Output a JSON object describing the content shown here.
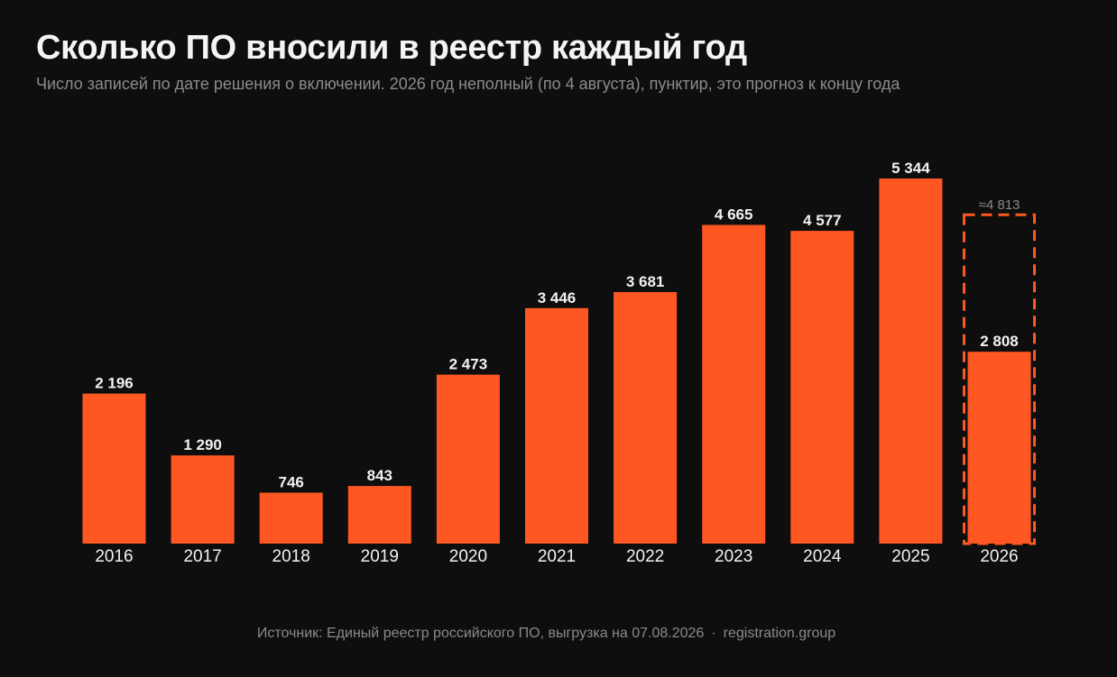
{
  "header": {
    "title": "Сколько ПО вносили в реестр каждый год",
    "subtitle": "Число записей по дате решения о включении. 2026 год неполный (по 4 августа), пунктир, это прогноз к концу года"
  },
  "footer": {
    "source": "Источник: Единый реестр российского ПО, выгрузка на 07.08.2026",
    "separator": "·",
    "site": "registration.group"
  },
  "colors": {
    "background": "#0e0e0e",
    "bar": "#ff5722",
    "forecast_outline": "#ff5722"
  },
  "chart_data": {
    "type": "bar",
    "categories": [
      "2016",
      "2017",
      "2018",
      "2019",
      "2020",
      "2021",
      "2022",
      "2023",
      "2024",
      "2025",
      "2026"
    ],
    "values": [
      2196,
      1290,
      746,
      843,
      2473,
      3446,
      3681,
      4665,
      4577,
      5344,
      2808
    ],
    "value_labels": [
      "2 196",
      "1 290",
      "746",
      "843",
      "2 473",
      "3 446",
      "3 681",
      "4 665",
      "4 577",
      "5 344",
      "2 808"
    ],
    "forecast": {
      "category": "2026",
      "value": 4813,
      "label": "≈4 813",
      "style": "dashed outline"
    },
    "ylim": [
      0,
      5344
    ],
    "grid": false,
    "xlabel": "",
    "ylabel": ""
  }
}
